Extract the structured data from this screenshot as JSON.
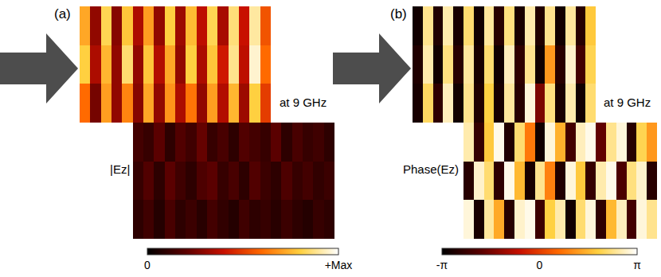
{
  "chart_data": [
    {
      "type": "heatmap",
      "panel": "(a)",
      "label": "|Ez|",
      "annotations": [
        "at 9 GHz"
      ],
      "tick_labels": false,
      "colorbar": {
        "range": [
          0,
          1
        ],
        "ticks": [
          0,
          {
            "value": 1,
            "label": "+Max"
          }
        ]
      },
      "cells": [
        [
          0.72,
          0.3,
          0.82,
          0.28,
          0.78,
          0.35,
          0.7,
          0.3,
          0.8,
          0.32,
          0.76,
          0.38,
          0.82,
          0.34,
          0.86,
          0.4,
          0.9,
          0.55,
          null,
          null,
          null,
          null,
          null,
          null
        ],
        [
          0.8,
          0.35,
          0.75,
          0.3,
          0.85,
          0.3,
          0.78,
          0.36,
          0.72,
          0.3,
          0.8,
          0.35,
          0.78,
          0.42,
          0.88,
          0.38,
          0.95,
          0.6,
          null,
          null,
          null,
          null,
          null,
          null
        ],
        [
          0.6,
          0.25,
          0.7,
          0.3,
          0.65,
          0.28,
          0.72,
          0.3,
          0.68,
          0.35,
          0.62,
          0.3,
          0.7,
          0.36,
          0.75,
          0.32,
          0.8,
          0.5,
          null,
          null,
          null,
          null,
          null,
          null
        ],
        [
          null,
          null,
          null,
          null,
          null,
          0.15,
          0.12,
          0.2,
          0.1,
          0.18,
          0.14,
          0.22,
          0.12,
          0.16,
          0.1,
          0.18,
          0.15,
          0.12,
          0.2,
          0.1,
          0.16,
          0.12,
          0.14,
          0.1
        ],
        [
          null,
          null,
          null,
          null,
          null,
          0.12,
          0.18,
          0.1,
          0.2,
          0.14,
          0.1,
          0.17,
          0.2,
          0.12,
          0.16,
          0.1,
          0.18,
          0.13,
          0.1,
          0.17,
          0.12,
          0.15,
          0.11,
          0.13
        ],
        [
          null,
          null,
          null,
          null,
          null,
          0.1,
          0.14,
          0.08,
          0.16,
          0.1,
          0.13,
          0.09,
          0.15,
          0.11,
          0.08,
          0.14,
          0.1,
          0.12,
          0.09,
          0.13,
          0.1,
          0.08,
          0.12,
          0.1
        ]
      ]
    },
    {
      "type": "heatmap",
      "panel": "(b)",
      "label": "Phase(Ez)",
      "annotations": [
        "at 9 GHz"
      ],
      "tick_labels": false,
      "colorbar": {
        "range": [
          -3.1416,
          3.1416
        ],
        "ticks": [
          {
            "value": -3.1416,
            "label": "-π"
          },
          0,
          {
            "value": 3.1416,
            "label": "π"
          }
        ]
      },
      "cells": [
        [
          -2.9,
          2.4,
          -2.7,
          2.6,
          -2.8,
          2.2,
          -2.9,
          2.5,
          -2.6,
          2.3,
          -2.8,
          2.6,
          -2.7,
          2.4,
          -2.9,
          2.5,
          -2.6,
          1.8,
          null,
          null,
          null,
          null,
          null,
          null
        ],
        [
          -2.7,
          2.6,
          -2.9,
          2.3,
          -2.6,
          2.5,
          -2.8,
          2.2,
          -2.9,
          2.7,
          -2.5,
          2.4,
          -2.9,
          1.2,
          -2.6,
          2.8,
          -2.2,
          2.0,
          null,
          null,
          null,
          null,
          null,
          null
        ],
        [
          -2.8,
          2.1,
          -2.5,
          2.7,
          -2.9,
          2.4,
          -2.7,
          1.9,
          -2.8,
          2.5,
          -2.6,
          2.9,
          -1.5,
          2.3,
          -2.8,
          2.6,
          -2.9,
          2.2,
          null,
          null,
          null,
          null,
          null,
          null
        ],
        [
          null,
          null,
          null,
          null,
          null,
          2.6,
          -2.4,
          1.8,
          3.0,
          -2.7,
          2.2,
          0.8,
          -2.9,
          2.9,
          1.5,
          -2.2,
          2.7,
          3.0,
          -1.8,
          2.4,
          2.9,
          -2.6,
          2.0,
          1.2
        ],
        [
          null,
          null,
          null,
          null,
          null,
          -2.6,
          2.8,
          2.2,
          -2.5,
          3.0,
          1.6,
          -2.8,
          2.4,
          0.9,
          -2.7,
          2.9,
          1.8,
          -2.4,
          2.6,
          3.0,
          -2.1,
          2.3,
          2.8,
          -2.6
        ],
        [
          null,
          null,
          null,
          null,
          null,
          2.9,
          -2.8,
          2.5,
          1.4,
          -2.6,
          2.8,
          3.0,
          -2.3,
          1.9,
          2.6,
          -2.9,
          2.2,
          2.9,
          -2.5,
          1.6,
          2.7,
          -2.2,
          2.9,
          2.4
        ]
      ]
    }
  ]
}
